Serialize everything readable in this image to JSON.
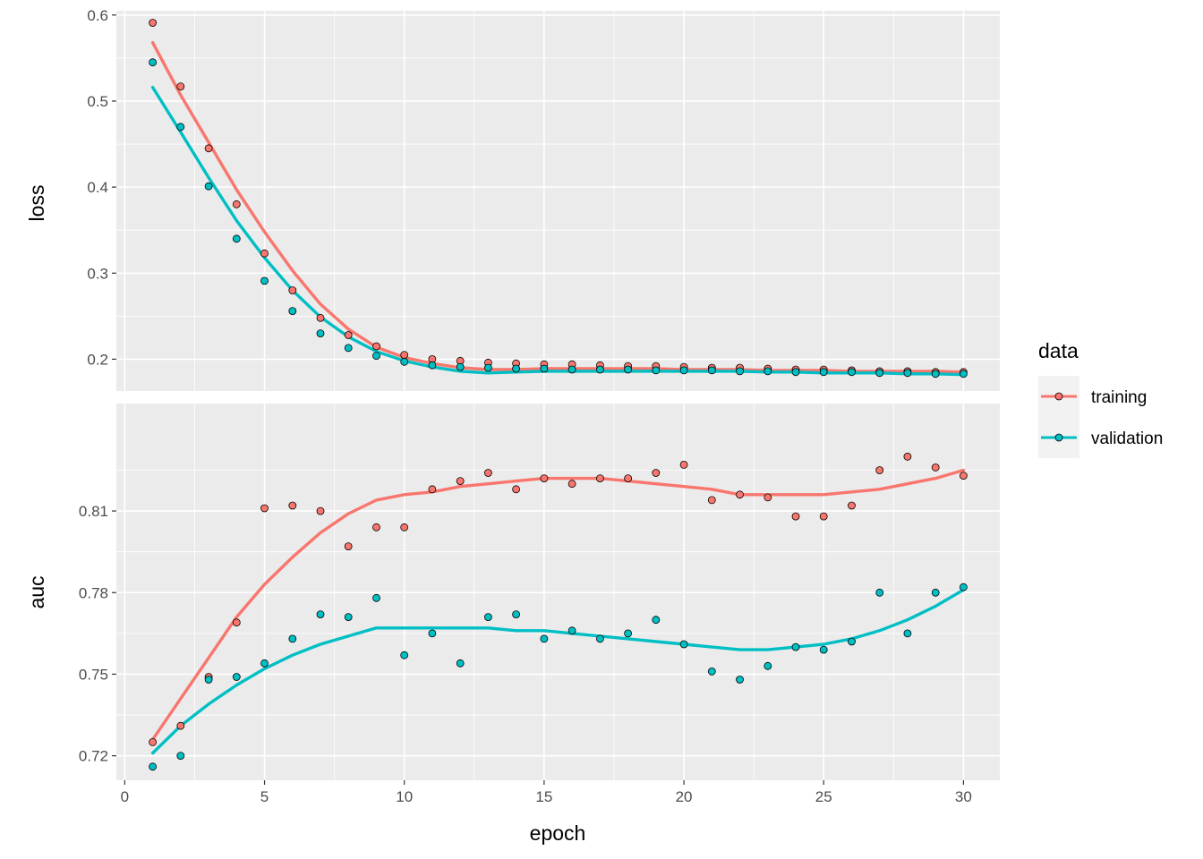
{
  "chart_data": {
    "type": "scatter",
    "title": "",
    "xlabel": "epoch",
    "xlim": [
      -0.3,
      31.3
    ],
    "xticks": [
      0,
      5,
      10,
      15,
      20,
      25,
      30
    ],
    "grid": true,
    "legend": {
      "title": "data",
      "position": "right",
      "entries": [
        {
          "name": "training",
          "color": "#F8766D"
        },
        {
          "name": "validation",
          "color": "#00BFC4"
        }
      ]
    },
    "panels": [
      {
        "ylabel": "loss",
        "ylim": [
          0.163,
          0.605
        ],
        "yticks": [
          0.2,
          0.3,
          0.4,
          0.5,
          0.6
        ],
        "ytick_labels": [
          "0.2",
          "0.3",
          "0.4",
          "0.5",
          "0.6"
        ],
        "series": [
          {
            "name": "training",
            "x": [
              1,
              2,
              3,
              4,
              5,
              6,
              7,
              8,
              9,
              10,
              11,
              12,
              13,
              14,
              15,
              16,
              17,
              18,
              19,
              20,
              21,
              22,
              23,
              24,
              25,
              26,
              27,
              28,
              29,
              30
            ],
            "points": [
              0.591,
              0.517,
              0.445,
              0.38,
              0.323,
              0.28,
              0.248,
              0.228,
              0.215,
              0.205,
              0.2,
              0.198,
              0.196,
              0.195,
              0.194,
              0.194,
              0.193,
              0.192,
              0.192,
              0.191,
              0.19,
              0.19,
              0.189,
              0.188,
              0.188,
              0.187,
              0.186,
              0.186,
              0.185,
              0.185
            ],
            "smooth": [
              0.568,
              0.507,
              0.452,
              0.397,
              0.348,
              0.303,
              0.264,
              0.235,
              0.214,
              0.202,
              0.195,
              0.19,
              0.188,
              0.188,
              0.189,
              0.189,
              0.189,
              0.189,
              0.189,
              0.188,
              0.188,
              0.188,
              0.187,
              0.187,
              0.187,
              0.186,
              0.186,
              0.186,
              0.186,
              0.185
            ]
          },
          {
            "name": "validation",
            "x": [
              1,
              2,
              3,
              4,
              5,
              6,
              7,
              8,
              9,
              10,
              11,
              12,
              13,
              14,
              15,
              16,
              17,
              18,
              19,
              20,
              21,
              22,
              23,
              24,
              25,
              26,
              27,
              28,
              29,
              30
            ],
            "points": [
              0.545,
              0.47,
              0.401,
              0.34,
              0.291,
              0.256,
              0.23,
              0.213,
              0.204,
              0.197,
              0.193,
              0.191,
              0.19,
              0.189,
              0.189,
              0.188,
              0.188,
              0.188,
              0.187,
              0.187,
              0.187,
              0.186,
              0.186,
              0.185,
              0.185,
              0.185,
              0.184,
              0.184,
              0.183,
              0.183
            ],
            "smooth": [
              0.516,
              0.464,
              0.411,
              0.361,
              0.318,
              0.28,
              0.249,
              0.226,
              0.209,
              0.198,
              0.191,
              0.186,
              0.184,
              0.185,
              0.186,
              0.186,
              0.186,
              0.186,
              0.186,
              0.186,
              0.186,
              0.186,
              0.185,
              0.185,
              0.184,
              0.184,
              0.184,
              0.183,
              0.183,
              0.182
            ]
          }
        ]
      },
      {
        "ylabel": "auc",
        "ylim": [
          0.711,
          0.8495
        ],
        "yticks": [
          0.72,
          0.75,
          0.78,
          0.81
        ],
        "ytick_labels": [
          "0.72",
          "0.75",
          "0.78",
          "0.81"
        ],
        "series": [
          {
            "name": "training",
            "x": [
              1,
              2,
              3,
              4,
              5,
              6,
              7,
              8,
              9,
              10,
              11,
              12,
              13,
              14,
              15,
              16,
              17,
              18,
              19,
              20,
              21,
              22,
              23,
              24,
              25,
              26,
              27,
              28,
              29,
              30
            ],
            "points": [
              0.725,
              0.731,
              0.749,
              0.769,
              0.811,
              0.812,
              0.81,
              0.797,
              0.804,
              0.804,
              0.818,
              0.821,
              0.824,
              0.818,
              0.822,
              0.82,
              0.822,
              0.822,
              0.824,
              0.827,
              0.814,
              0.816,
              0.815,
              0.808,
              0.808,
              0.812,
              0.825,
              0.83,
              0.826,
              0.823
            ],
            "smooth": [
              0.726,
              0.741,
              0.756,
              0.771,
              0.783,
              0.793,
              0.802,
              0.809,
              0.814,
              0.816,
              0.817,
              0.819,
              0.82,
              0.821,
              0.822,
              0.822,
              0.822,
              0.821,
              0.82,
              0.819,
              0.818,
              0.816,
              0.816,
              0.816,
              0.816,
              0.817,
              0.818,
              0.82,
              0.822,
              0.825
            ]
          },
          {
            "name": "validation",
            "x": [
              1,
              2,
              3,
              4,
              5,
              6,
              7,
              8,
              9,
              10,
              11,
              12,
              13,
              14,
              15,
              16,
              17,
              18,
              19,
              20,
              21,
              22,
              23,
              24,
              25,
              26,
              27,
              28,
              29,
              30
            ],
            "points": [
              0.716,
              0.72,
              0.748,
              0.749,
              0.754,
              0.763,
              0.772,
              0.771,
              0.778,
              0.757,
              0.765,
              0.754,
              0.771,
              0.772,
              0.763,
              0.766,
              0.763,
              0.765,
              0.77,
              0.761,
              0.751,
              0.748,
              0.753,
              0.76,
              0.759,
              0.762,
              0.78,
              0.765,
              0.78,
              0.782
            ],
            "smooth": [
              0.721,
              0.731,
              0.739,
              0.746,
              0.752,
              0.757,
              0.761,
              0.764,
              0.767,
              0.767,
              0.767,
              0.767,
              0.767,
              0.766,
              0.766,
              0.765,
              0.764,
              0.763,
              0.762,
              0.761,
              0.76,
              0.759,
              0.759,
              0.76,
              0.761,
              0.763,
              0.766,
              0.77,
              0.775,
              0.781
            ]
          }
        ]
      }
    ]
  }
}
